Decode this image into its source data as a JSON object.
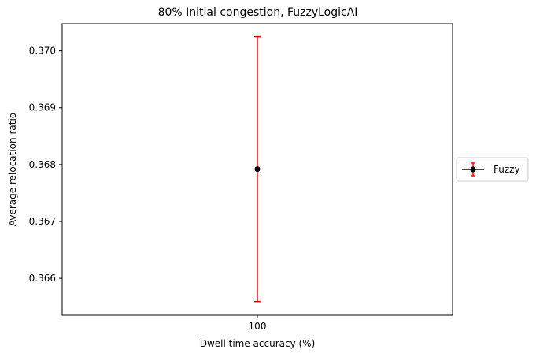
{
  "chart_data": {
    "type": "scatter",
    "title": "80% Initial congestion, FuzzyLogicAI",
    "xlabel": "Dwell time accuracy (%)",
    "ylabel": "Average relocation ratio",
    "x_categories": [
      "100"
    ],
    "ylim": [
      0.36535,
      0.37048
    ],
    "yticks": [
      0.366,
      0.367,
      0.368,
      0.369,
      0.37
    ],
    "ytick_labels": [
      "0.366",
      "0.367",
      "0.368",
      "0.369",
      "0.370"
    ],
    "grid": false,
    "legend_position": "center-right, outside plot",
    "series": [
      {
        "name": "Fuzzy",
        "x": [
          "100"
        ],
        "y": [
          0.36792
        ],
        "y_err_low": [
          0.36559
        ],
        "y_err_high": [
          0.37025
        ],
        "marker_color": "#000000",
        "line_color": "#000000",
        "errorbar_color": "#ff0000"
      }
    ]
  }
}
